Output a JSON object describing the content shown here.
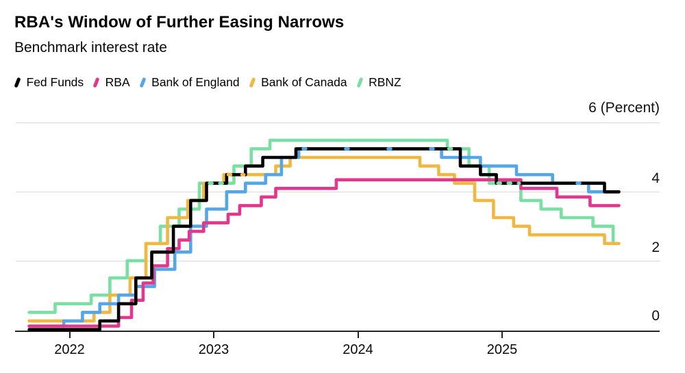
{
  "header": {
    "title": "RBA's Window of Further Easing Narrows",
    "subtitle": "Benchmark interest rate"
  },
  "chart_data": {
    "type": "line",
    "step": true,
    "title": "RBA's Window of Further Easing Narrows",
    "subtitle": "Benchmark interest rate",
    "legend_position": "top",
    "grid": "horizontal",
    "y_axis": {
      "min": 0,
      "max": 6,
      "unit": "Percent",
      "ticks": [
        {
          "value": 6,
          "label": "6 (Percent)"
        },
        {
          "value": 4,
          "label": "4"
        },
        {
          "value": 2,
          "label": "2"
        },
        {
          "value": 0,
          "label": "0"
        }
      ]
    },
    "x_axis": {
      "start": 2021.72,
      "end": 2025.81,
      "ticks": [
        {
          "value": 2022,
          "label": "2022"
        },
        {
          "value": 2023,
          "label": "2023"
        },
        {
          "value": 2024,
          "label": "2024"
        },
        {
          "value": 2025,
          "label": "2025"
        }
      ]
    },
    "series": [
      {
        "name": "Fed Funds",
        "color": "#000000",
        "end": 2025.81,
        "points": [
          [
            2021.72,
            0.0
          ],
          [
            2022.21,
            0.25
          ],
          [
            2022.34,
            0.75
          ],
          [
            2022.46,
            1.5
          ],
          [
            2022.57,
            2.25
          ],
          [
            2022.72,
            3.0
          ],
          [
            2022.84,
            3.75
          ],
          [
            2022.95,
            4.25
          ],
          [
            2023.09,
            4.5
          ],
          [
            2023.22,
            4.75
          ],
          [
            2023.34,
            5.0
          ],
          [
            2023.57,
            5.25
          ],
          [
            2024.71,
            4.75
          ],
          [
            2024.85,
            4.5
          ],
          [
            2024.96,
            4.25
          ],
          [
            2025.71,
            4.0
          ]
        ]
      },
      {
        "name": "RBA",
        "color": "#E2378C",
        "end": 2025.81,
        "points": [
          [
            2021.72,
            0.1
          ],
          [
            2022.34,
            0.35
          ],
          [
            2022.43,
            0.85
          ],
          [
            2022.51,
            1.35
          ],
          [
            2022.58,
            1.85
          ],
          [
            2022.68,
            2.35
          ],
          [
            2022.76,
            2.6
          ],
          [
            2022.83,
            2.85
          ],
          [
            2022.93,
            3.1
          ],
          [
            2023.1,
            3.35
          ],
          [
            2023.18,
            3.6
          ],
          [
            2023.33,
            3.85
          ],
          [
            2023.43,
            4.1
          ],
          [
            2023.85,
            4.35
          ],
          [
            2025.13,
            4.1
          ],
          [
            2025.38,
            3.85
          ],
          [
            2025.61,
            3.6
          ]
        ]
      },
      {
        "name": "Bank of England",
        "color": "#55A6E8",
        "end": 2025.81,
        "points": [
          [
            2021.72,
            0.1
          ],
          [
            2021.96,
            0.25
          ],
          [
            2022.09,
            0.5
          ],
          [
            2022.21,
            0.75
          ],
          [
            2022.34,
            1.0
          ],
          [
            2022.46,
            1.25
          ],
          [
            2022.59,
            1.75
          ],
          [
            2022.73,
            2.25
          ],
          [
            2022.84,
            3.0
          ],
          [
            2022.95,
            3.5
          ],
          [
            2023.09,
            4.0
          ],
          [
            2023.22,
            4.25
          ],
          [
            2023.36,
            4.5
          ],
          [
            2023.47,
            5.0
          ],
          [
            2023.59,
            5.25
          ],
          [
            2024.58,
            5.0
          ],
          [
            2024.85,
            4.75
          ],
          [
            2025.1,
            4.5
          ],
          [
            2025.35,
            4.25
          ],
          [
            2025.6,
            4.0
          ]
        ]
      },
      {
        "name": "Bank of Canada",
        "color": "#F0B841",
        "end": 2025.81,
        "points": [
          [
            2021.72,
            0.25
          ],
          [
            2022.17,
            0.5
          ],
          [
            2022.28,
            1.0
          ],
          [
            2022.42,
            1.5
          ],
          [
            2022.53,
            2.5
          ],
          [
            2022.68,
            3.25
          ],
          [
            2022.82,
            3.75
          ],
          [
            2022.93,
            4.25
          ],
          [
            2023.07,
            4.5
          ],
          [
            2023.43,
            4.75
          ],
          [
            2023.53,
            5.0
          ],
          [
            2024.43,
            4.75
          ],
          [
            2024.56,
            4.5
          ],
          [
            2024.67,
            4.25
          ],
          [
            2024.81,
            3.75
          ],
          [
            2024.94,
            3.25
          ],
          [
            2025.08,
            3.0
          ],
          [
            2025.19,
            2.75
          ],
          [
            2025.71,
            2.5
          ]
        ]
      },
      {
        "name": "RBNZ",
        "color": "#79DFA2",
        "end": 2025.81,
        "points": [
          [
            2021.72,
            0.5
          ],
          [
            2021.9,
            0.75
          ],
          [
            2022.15,
            1.0
          ],
          [
            2022.28,
            1.5
          ],
          [
            2022.4,
            2.0
          ],
          [
            2022.53,
            2.5
          ],
          [
            2022.63,
            3.0
          ],
          [
            2022.76,
            3.5
          ],
          [
            2022.9,
            4.25
          ],
          [
            2023.14,
            4.75
          ],
          [
            2023.26,
            5.25
          ],
          [
            2023.39,
            5.5
          ],
          [
            2024.62,
            5.25
          ],
          [
            2024.77,
            4.75
          ],
          [
            2024.91,
            4.25
          ],
          [
            2025.13,
            3.75
          ],
          [
            2025.27,
            3.5
          ],
          [
            2025.41,
            3.25
          ],
          [
            2025.63,
            3.0
          ],
          [
            2025.77,
            2.5
          ]
        ]
      }
    ],
    "overlap_dashes": [
      {
        "color": "#79DFA2",
        "value": 4.25,
        "t0": 2022.97,
        "t1": 2023.08,
        "dash": "4 11"
      },
      {
        "color": "#F0B841",
        "value": 4.5,
        "t0": 2023.1,
        "t1": 2023.21,
        "dash": "4 16"
      },
      {
        "color": "#55A6E8",
        "value": 5.25,
        "t0": 2023.62,
        "t1": 2024.55,
        "dash": "4 58"
      },
      {
        "color": "#79DFA2",
        "value": 5.25,
        "t0": 2024.63,
        "t1": 2024.7,
        "dash": "4 11"
      },
      {
        "color": "#79DFA2",
        "value": 4.25,
        "t0": 2024.97,
        "t1": 2025.12,
        "dash": "4 11"
      },
      {
        "color": "#55A6E8",
        "value": 4.25,
        "t0": 2025.52,
        "t1": 2025.57,
        "dash": "4 30"
      }
    ]
  }
}
